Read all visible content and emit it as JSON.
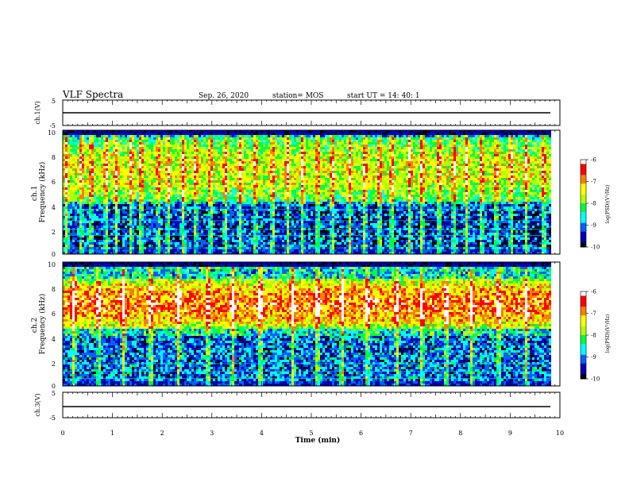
{
  "header": {
    "title": "VLF Spectra",
    "date": "Sep. 26, 2020",
    "station": "station= MOS",
    "start": "start  UT =   14: 40: 1"
  },
  "panels": {
    "ch1_wave": {
      "ylabel": "ch.1(V)",
      "ticks": [
        "5",
        "-5"
      ],
      "ylim": [
        -5,
        5
      ]
    },
    "ch1_spec": {
      "ylabel": "ch.1\nFrequency (kHz)",
      "ticks": [
        "10",
        "8",
        "6",
        "4",
        "2",
        "0"
      ]
    },
    "ch2_spec": {
      "ylabel": "ch.2\nFrequency (kHz)",
      "ticks": [
        "10",
        "8",
        "6",
        "4",
        "2",
        "0"
      ]
    },
    "ch3_wave": {
      "ylabel": "ch.3(V)",
      "ticks": [
        "5",
        "-5"
      ],
      "ylim": [
        -5,
        5
      ]
    }
  },
  "xaxis": {
    "label": "Time (min)",
    "ticks": [
      "0",
      "1",
      "2",
      "3",
      "4",
      "5",
      "6",
      "7",
      "8",
      "9",
      "10"
    ]
  },
  "colorbar": {
    "label": "log(PSD)(V²/Hz)",
    "ticks": [
      "-6",
      "-7",
      "-8",
      "-9",
      "-10"
    ],
    "range": [
      -10,
      -6
    ],
    "colors": [
      "#000000",
      "#0000b4",
      "#0060ff",
      "#00ffff",
      "#00ff40",
      "#b4ff00",
      "#ffff00",
      "#ff8000",
      "#ff0000",
      "#ffffff"
    ]
  },
  "chart_data": {
    "type": "heatmap",
    "title": "VLF Spectra",
    "xlabel": "Time (min)",
    "xlim": [
      0,
      10
    ],
    "data_end_min": 9.8,
    "series": [
      {
        "name": "ch.1",
        "ylabel": "Frequency (kHz)",
        "ylim": [
          0,
          10
        ],
        "band_kHz": [
          4.2,
          9.4
        ],
        "band_level_logPSD": -7.6,
        "background_logPSD": -8.8,
        "burst_times_min": [
          0.05,
          0.35,
          0.55,
          0.85,
          1.05,
          1.35,
          1.55,
          1.9,
          2.1,
          2.4,
          2.65,
          2.95,
          3.25,
          3.55,
          3.85,
          4.2,
          4.5,
          4.8,
          5.1,
          5.4,
          5.75,
          6.05,
          6.35,
          6.6,
          6.95,
          7.2,
          7.55,
          7.85,
          8.1,
          8.4,
          8.7,
          9.0,
          9.3,
          9.65
        ],
        "hiss_lines_kHz": [
          0.5,
          1.5,
          2.0,
          2.7,
          3.6
        ]
      },
      {
        "name": "ch.2",
        "ylabel": "Frequency (kHz)",
        "ylim": [
          0,
          10
        ],
        "band_kHz": [
          4.6,
          8.6
        ],
        "band_level_logPSD": -6.8,
        "background_logPSD": -8.6,
        "burst_times_min": [
          0.2,
          0.7,
          1.2,
          1.75,
          2.3,
          2.9,
          3.4,
          3.95,
          4.6,
          5.1,
          5.6,
          6.1,
          6.7,
          7.2,
          7.7,
          8.2,
          8.75,
          9.3
        ],
        "hiss_lines_kHz": [
          0.6,
          1.2,
          1.8
        ]
      }
    ],
    "waveforms": [
      {
        "name": "ch.1(V)",
        "ylim": [
          -5,
          5
        ],
        "value": 0
      },
      {
        "name": "ch.3(V)",
        "ylim": [
          -5,
          5
        ],
        "value": 0
      }
    ]
  }
}
